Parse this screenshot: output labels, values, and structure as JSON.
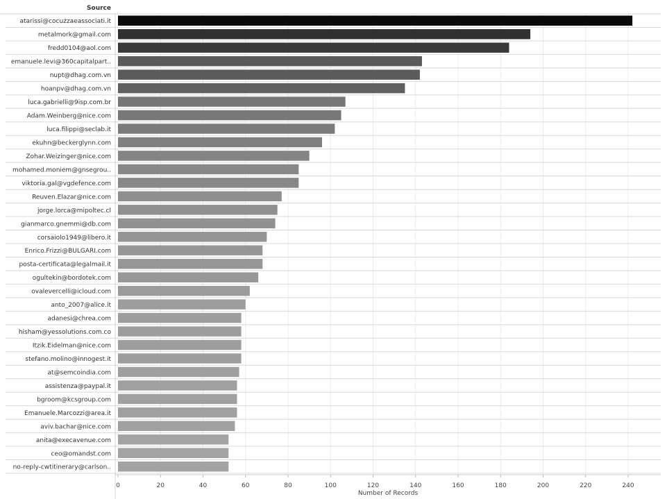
{
  "chart_data": {
    "type": "bar",
    "orientation": "horizontal",
    "row_header": "Source",
    "xlabel": "Number of Records",
    "xlim": [
      0,
      250
    ],
    "xticks": [
      0,
      20,
      40,
      60,
      80,
      100,
      120,
      140,
      160,
      180,
      200,
      220,
      240
    ],
    "grid": true,
    "categories": [
      "atarissi@cocuzzaeassociati.it",
      "metalmork@gmail.com",
      "fredd0104@aol.com",
      "emanuele.levi@360capitalpart..",
      "nupt@dhag.com.vn",
      "hoanpv@dhag.com.vn",
      "luca.gabrielli@9isp.com.br",
      "Adam.Weinberg@nice.com",
      "luca.filippi@seclab.it",
      "ekuhn@beckerglynn.com",
      "Zohar.Weizinger@nice.com",
      "mohamed.moniem@gnsegrou..",
      "viktoria.gal@vgdefence.com",
      "Reuven.Elazar@nice.com",
      "jorge.lorca@mipoltec.cl",
      "gianmarco.gnemmi@db.com",
      "corsaiolo1949@libero.it",
      "Enrico.Frizzi@BULGARI.com",
      "posta-certificata@legalmail.it",
      "ogultekin@bordotek.com",
      "ovalevercelli@icloud.com",
      "anto_2007@alice.it",
      "adanesi@chrea.com",
      "hisham@yessolutions.com.co",
      "Itzik.Eidelman@nice.com",
      "stefano.molino@innogest.it",
      "at@semcoindia.com",
      "assistenza@paypal.it",
      "bgroom@kcsgroup.com",
      "Emanuele.Marcozzi@area.it",
      "aviv.bachar@nice.com",
      "anita@execavenue.com",
      "ceo@omandst.com",
      "no-reply-cwtitinerary@carlson.."
    ],
    "values": [
      242,
      194,
      184,
      143,
      142,
      135,
      107,
      105,
      102,
      96,
      90,
      85,
      85,
      77,
      75,
      74,
      70,
      68,
      68,
      66,
      62,
      60,
      58,
      58,
      58,
      58,
      57,
      56,
      56,
      56,
      55,
      52,
      52,
      52
    ],
    "color_scale": [
      "#a3a3a3",
      "#0a0a0a"
    ]
  }
}
